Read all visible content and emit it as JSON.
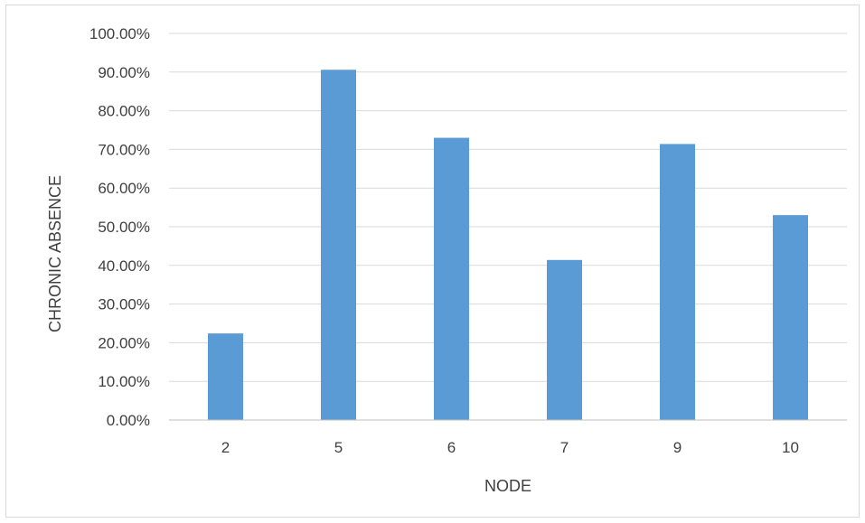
{
  "chart_data": {
    "type": "bar",
    "title": "",
    "xlabel": "NODE",
    "ylabel": "CHRONIC ABSENCE",
    "categories": [
      "2",
      "5",
      "6",
      "7",
      "9",
      "10"
    ],
    "values": [
      0.224,
      0.906,
      0.73,
      0.414,
      0.714,
      0.53
    ],
    "ylim": [
      0,
      1
    ],
    "yticks": [
      0,
      0.1,
      0.2,
      0.3,
      0.4,
      0.5,
      0.6,
      0.7,
      0.8,
      0.9,
      1.0
    ],
    "ytick_labels": [
      "0.00%",
      "10.00%",
      "20.00%",
      "30.00%",
      "40.00%",
      "50.00%",
      "60.00%",
      "70.00%",
      "80.00%",
      "90.00%",
      "100.00%"
    ],
    "grid": true,
    "legend": "none",
    "colors": {
      "bar": "#5b9bd5",
      "grid": "#d9d9d9",
      "axis": "#bfbfbf",
      "text": "#404040"
    }
  }
}
